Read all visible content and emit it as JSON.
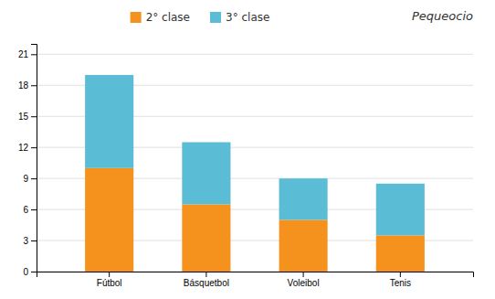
{
  "chart_data": {
    "type": "bar",
    "stacked": true,
    "categories": [
      "Fútbol",
      "Básquetbol",
      "Voleibol",
      "Tenis"
    ],
    "series": [
      {
        "name": "2° clase",
        "color": "#f5921e",
        "values": [
          10,
          6.5,
          5,
          3.5
        ]
      },
      {
        "name": "3° clase",
        "color": "#5bbcd6",
        "values": [
          9,
          6,
          4,
          5
        ]
      }
    ],
    "ylim": [
      0,
      22
    ],
    "yticks": [
      0,
      3,
      6,
      9,
      12,
      15,
      18,
      21
    ],
    "grid": true,
    "legend": "top",
    "annotations": [
      "Pequeocio"
    ]
  }
}
